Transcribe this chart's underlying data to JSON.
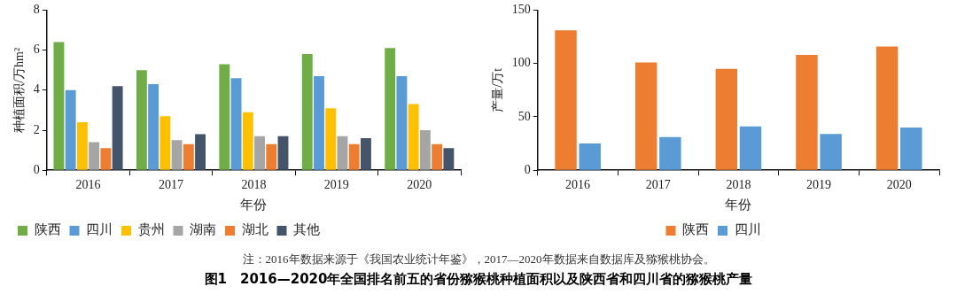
{
  "chart_data": [
    {
      "type": "bar",
      "categories": [
        "2016",
        "2017",
        "2018",
        "2019",
        "2020"
      ],
      "xlabel": "年份",
      "ylabel": "种植面积/万hm²",
      "ylim": [
        0,
        8
      ],
      "yticks": [
        0,
        2,
        4,
        6,
        8
      ],
      "grid": false,
      "legend": "bottom",
      "series": [
        {
          "name": "陕西",
          "color": "#70ad47",
          "values": [
            6.4,
            5.0,
            5.3,
            5.8,
            6.1
          ]
        },
        {
          "name": "四川",
          "color": "#5b9bd5",
          "values": [
            4.0,
            4.3,
            4.6,
            4.7,
            4.7
          ]
        },
        {
          "name": "贵州",
          "color": "#ffc000",
          "values": [
            2.4,
            2.7,
            2.9,
            3.1,
            3.3
          ]
        },
        {
          "name": "湖南",
          "color": "#a5a5a5",
          "values": [
            1.4,
            1.5,
            1.7,
            1.7,
            2.0
          ]
        },
        {
          "name": "湖北",
          "color": "#ed7d31",
          "values": [
            1.1,
            1.3,
            1.3,
            1.3,
            1.3
          ]
        },
        {
          "name": "其他",
          "color": "#44546a",
          "values": [
            4.2,
            1.8,
            1.7,
            1.6,
            1.1
          ]
        }
      ]
    },
    {
      "type": "bar",
      "categories": [
        "2016",
        "2017",
        "2018",
        "2019",
        "2020"
      ],
      "xlabel": "年份",
      "ylabel": "产量/万t",
      "ylim": [
        0,
        150
      ],
      "yticks": [
        0,
        50,
        100,
        150
      ],
      "grid": false,
      "legend": "bottom",
      "series": [
        {
          "name": "陕西",
          "color": "#ed7d31",
          "values": [
            131,
            101,
            95,
            108,
            116
          ]
        },
        {
          "name": "四川",
          "color": "#5b9bd5",
          "values": [
            25,
            31,
            41,
            34,
            40
          ]
        }
      ],
      "annotations": [
        "注：2016年数据来源于《我国农业统计年鉴》，2017—2020年数据来自数据库及猕猴桃协会。",
        "图1　2016—2020年全国排名前五的省份猕猴桃种植面积以及陕西省和四川省的猕猴桃产量"
      ]
    }
  ]
}
